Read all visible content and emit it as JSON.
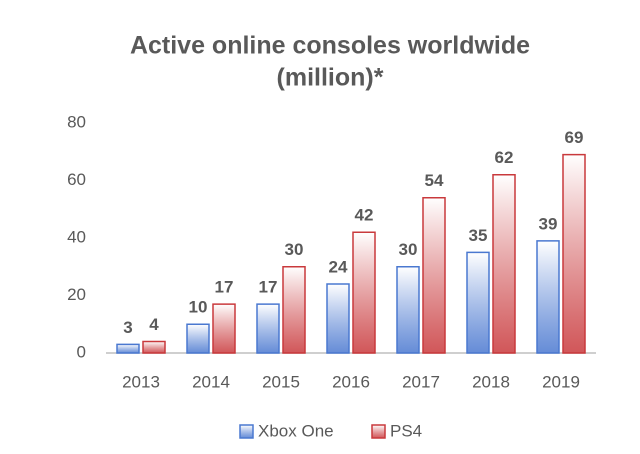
{
  "chart_data": {
    "type": "bar",
    "title": [
      "Active online consoles worldwide",
      "(million)*"
    ],
    "categories": [
      "2013",
      "2014",
      "2015",
      "2016",
      "2017",
      "2018",
      "2019"
    ],
    "series": [
      {
        "name": "Xbox One",
        "color": "#4a78d0",
        "values": [
          3,
          10,
          17,
          24,
          30,
          35,
          39
        ]
      },
      {
        "name": "PS4",
        "color": "#c9393c",
        "values": [
          4,
          17,
          30,
          42,
          54,
          62,
          69
        ]
      }
    ],
    "ylim": [
      0,
      80
    ],
    "yticks": [
      0,
      20,
      40,
      60,
      80
    ],
    "grid": false,
    "legend": "bottom"
  }
}
